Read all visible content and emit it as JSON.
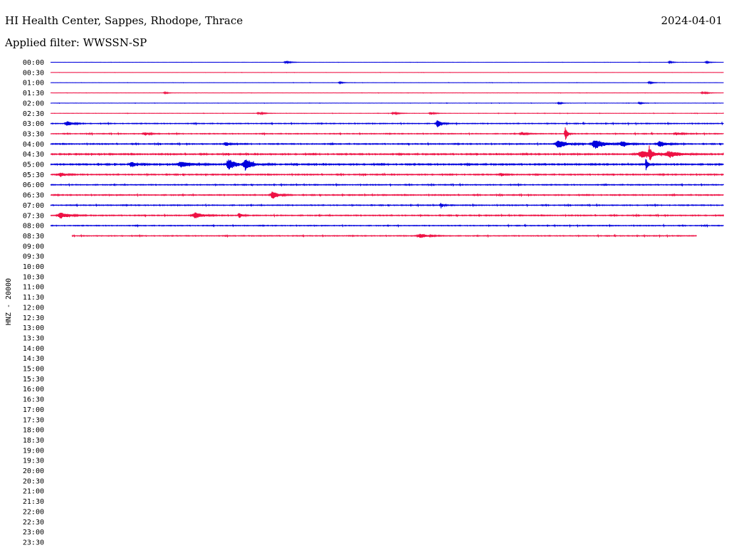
{
  "header": {
    "station": "HI Health Center, Sappes, Rhodope, Thrace",
    "date": "2024-04-01",
    "filter": "Applied filter: WWSSN-SP"
  },
  "chart_data": {
    "type": "line",
    "title": "HI Health Center, Sappes, Rhodope, Thrace",
    "ylabel": "HNZ - 20000",
    "xlabel": "",
    "row_labels": [
      "00:00",
      "00:30",
      "01:00",
      "01:30",
      "02:00",
      "02:30",
      "03:00",
      "03:30",
      "04:00",
      "04:30",
      "05:00",
      "05:30",
      "06:00",
      "06:30",
      "07:00",
      "07:30",
      "08:00",
      "08:30",
      "09:00",
      "09:30",
      "10:00",
      "10:30",
      "11:00",
      "11:30",
      "12:00",
      "12:30",
      "13:00",
      "13:30",
      "14:00",
      "14:30",
      "15:00",
      "15:30",
      "16:00",
      "16:30",
      "17:00",
      "17:30",
      "18:00",
      "18:30",
      "19:00",
      "19:30",
      "20:00",
      "20:30",
      "21:00",
      "21:30",
      "22:00",
      "22:30",
      "23:00",
      "23:30"
    ],
    "row_minutes": 30,
    "trace_colors": [
      "#0000dd",
      "#ee1144"
    ],
    "rows_recorded": 18,
    "last_row_end_fraction": 0.96,
    "noise_level": [
      0.1,
      0.1,
      0.12,
      0.12,
      0.15,
      0.18,
      0.45,
      0.45,
      0.55,
      0.7,
      0.75,
      0.6,
      0.5,
      0.55,
      0.5,
      0.55,
      0.45,
      0.45
    ],
    "events": [
      {
        "row": 0,
        "t": 0.35,
        "amp": 1.5,
        "width": 0.004
      },
      {
        "row": 0,
        "t": 0.92,
        "amp": 1.2,
        "width": 0.003
      },
      {
        "row": 0,
        "t": 0.975,
        "amp": 1.2,
        "width": 0.003
      },
      {
        "row": 2,
        "t": 0.43,
        "amp": 1.0,
        "width": 0.003
      },
      {
        "row": 2,
        "t": 0.89,
        "amp": 1.2,
        "width": 0.003
      },
      {
        "row": 3,
        "t": 0.17,
        "amp": 1.0,
        "width": 0.003
      },
      {
        "row": 3,
        "t": 0.97,
        "amp": 1.5,
        "width": 0.004
      },
      {
        "row": 4,
        "t": 0.755,
        "amp": 2.0,
        "width": 0.002
      },
      {
        "row": 4,
        "t": 0.875,
        "amp": 2.0,
        "width": 0.002
      },
      {
        "row": 5,
        "t": 0.31,
        "amp": 1.5,
        "width": 0.004
      },
      {
        "row": 5,
        "t": 0.51,
        "amp": 1.5,
        "width": 0.004
      },
      {
        "row": 5,
        "t": 0.565,
        "amp": 2.0,
        "width": 0.003
      },
      {
        "row": 6,
        "t": 0.025,
        "amp": 3.5,
        "width": 0.004
      },
      {
        "row": 6,
        "t": 0.575,
        "amp": 6.0,
        "width": 0.003
      },
      {
        "row": 7,
        "t": 0.14,
        "amp": 2.0,
        "width": 0.004
      },
      {
        "row": 7,
        "t": 0.7,
        "amp": 2.0,
        "width": 0.004
      },
      {
        "row": 7,
        "t": 0.765,
        "amp": 12.0,
        "width": 0.0015
      },
      {
        "row": 7,
        "t": 0.93,
        "amp": 2.0,
        "width": 0.004
      },
      {
        "row": 8,
        "t": 0.26,
        "amp": 3.0,
        "width": 0.003
      },
      {
        "row": 8,
        "t": 0.755,
        "amp": 6.0,
        "width": 0.006
      },
      {
        "row": 8,
        "t": 0.81,
        "amp": 6.5,
        "width": 0.007
      },
      {
        "row": 8,
        "t": 0.85,
        "amp": 4.0,
        "width": 0.005
      },
      {
        "row": 8,
        "t": 0.905,
        "amp": 4.5,
        "width": 0.005
      },
      {
        "row": 9,
        "t": 0.88,
        "amp": 5.0,
        "width": 0.01
      },
      {
        "row": 9,
        "t": 0.92,
        "amp": 4.0,
        "width": 0.008
      },
      {
        "row": 9,
        "t": 0.89,
        "amp": 9.0,
        "width": 0.0015
      },
      {
        "row": 10,
        "t": 0.12,
        "amp": 4.0,
        "width": 0.004
      },
      {
        "row": 10,
        "t": 0.195,
        "amp": 4.0,
        "width": 0.008
      },
      {
        "row": 10,
        "t": 0.265,
        "amp": 7.5,
        "width": 0.005
      },
      {
        "row": 10,
        "t": 0.29,
        "amp": 8.0,
        "width": 0.005
      },
      {
        "row": 10,
        "t": 0.885,
        "amp": 9.0,
        "width": 0.0015
      },
      {
        "row": 11,
        "t": 0.015,
        "amp": 3.0,
        "width": 0.004
      },
      {
        "row": 11,
        "t": 0.67,
        "amp": 2.5,
        "width": 0.003
      },
      {
        "row": 13,
        "t": 0.33,
        "amp": 6.0,
        "width": 0.004
      },
      {
        "row": 14,
        "t": 0.58,
        "amp": 3.0,
        "width": 0.002
      },
      {
        "row": 15,
        "t": 0.015,
        "amp": 4.0,
        "width": 0.006
      },
      {
        "row": 15,
        "t": 0.215,
        "amp": 4.0,
        "width": 0.006
      },
      {
        "row": 15,
        "t": 0.28,
        "amp": 4.0,
        "width": 0.002
      },
      {
        "row": 17,
        "t": 0.55,
        "amp": 3.0,
        "width": 0.006
      }
    ]
  }
}
